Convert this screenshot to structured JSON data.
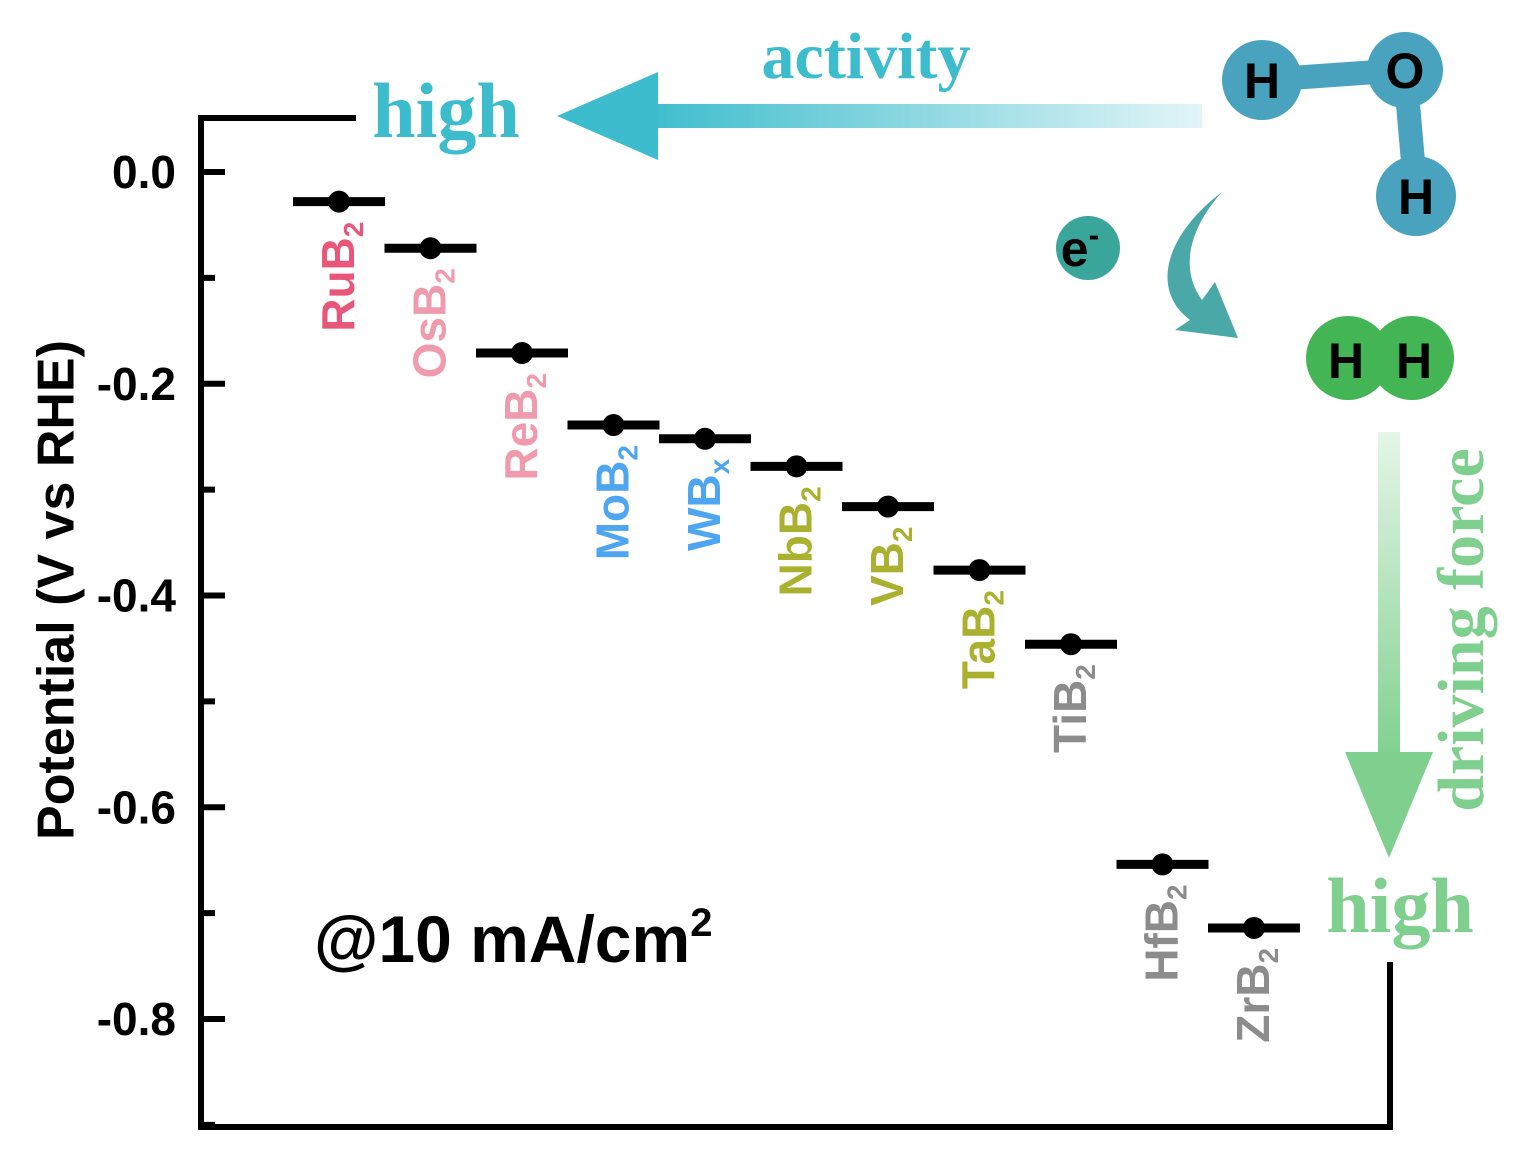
{
  "chart_data": {
    "type": "scatter",
    "ylabel": "Potential (V vs RHE)",
    "ylim": [
      -0.9,
      0.05
    ],
    "yticks": [
      0.0,
      -0.2,
      -0.4,
      -0.6,
      -0.8
    ],
    "yticklabels": [
      "0.0",
      "-0.2",
      "-0.4",
      "-0.6",
      "-0.8"
    ],
    "condition": "@10 mA/cm",
    "condition_sup": "2",
    "points": [
      {
        "name": "RuB",
        "sub": "2",
        "value": -0.028,
        "color": "#e8567a"
      },
      {
        "name": "OsB",
        "sub": "2",
        "value": -0.072,
        "color": "#f09aae"
      },
      {
        "name": "ReB",
        "sub": "2",
        "value": -0.171,
        "color": "#f09aae"
      },
      {
        "name": "MoB",
        "sub": "2",
        "value": -0.239,
        "color": "#4ea5f0"
      },
      {
        "name": "WB",
        "sub": "x",
        "value": -0.252,
        "color": "#4ea5f0"
      },
      {
        "name": "NbB",
        "sub": "2",
        "value": -0.278,
        "color": "#a9b12e"
      },
      {
        "name": "VB",
        "sub": "2",
        "value": -0.316,
        "color": "#a9b12e"
      },
      {
        "name": "TaB",
        "sub": "2",
        "value": -0.376,
        "color": "#a9b12e"
      },
      {
        "name": "TiB",
        "sub": "2",
        "value": -0.446,
        "color": "#8c8c8c"
      },
      {
        "name": "HfB",
        "sub": "2",
        "value": -0.654,
        "color": "#8c8c8c"
      },
      {
        "name": "ZrB",
        "sub": "2",
        "value": -0.714,
        "color": "#8c8c8c"
      }
    ]
  },
  "annotations": {
    "activity": "activity",
    "activity_high": "high",
    "driving_force": "driving force",
    "driving_high": "high",
    "electron": "e",
    "electron_sup": "-",
    "water_atoms": [
      "H",
      "O",
      "H"
    ],
    "hydrogen_atoms": [
      "H",
      "H"
    ]
  },
  "colors": {
    "activity": "#3cbccc",
    "driving_force": "#7fd08e",
    "water": "#4aa3be",
    "hydrogen": "#44b554",
    "electron": "#3aa59a",
    "curved_arrow": "#4aa9a6"
  }
}
